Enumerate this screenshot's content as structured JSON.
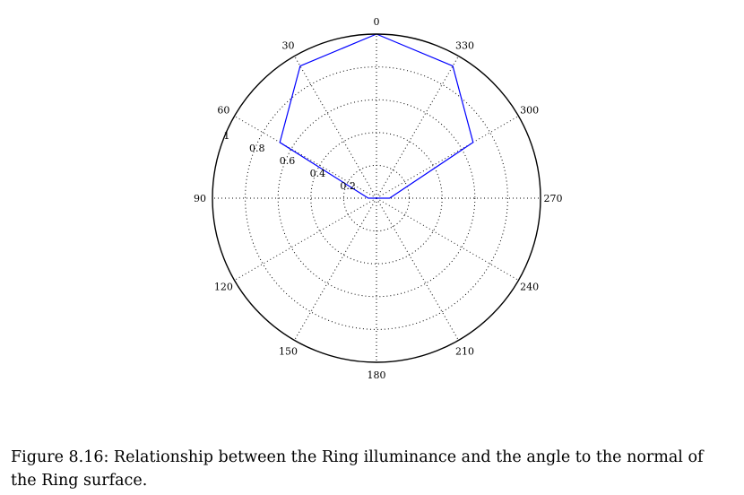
{
  "chart_data": {
    "type": "polar-line",
    "theta_direction": "counterclockwise",
    "theta_zero": "top",
    "theta_ticks": [
      "0",
      "30",
      "60",
      "90",
      "120",
      "150",
      "180",
      "210",
      "240",
      "270",
      "300",
      "330"
    ],
    "radial_ticks": [
      "0.2",
      "0.4",
      "0.6",
      "0.8",
      "1"
    ],
    "rlim": [
      0,
      1
    ],
    "grid": true,
    "series": [
      {
        "color": "#0000ff",
        "theta": [
          0,
          30,
          60,
          90,
          180,
          270,
          300,
          330,
          0
        ],
        "r": [
          1.0,
          0.93,
          0.68,
          0.05,
          0.0,
          0.08,
          0.68,
          0.93,
          1.0
        ]
      }
    ]
  },
  "caption": "Figure 8.16: Relationship between the Ring illuminance and the angle to the normal of the Ring surface."
}
